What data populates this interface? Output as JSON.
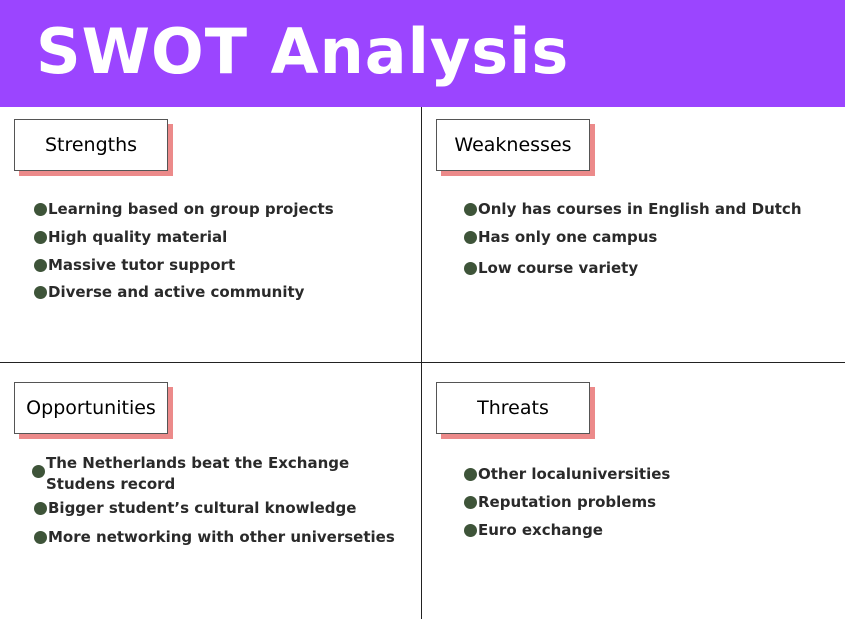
{
  "title": "SWOT Analysis",
  "colors": {
    "header_bg": "#9b45ff",
    "label_shadow": "#ec8a8a",
    "bullet": "#3e5439"
  },
  "strengths": {
    "label": "Strengths",
    "items": [
      "Learning based on group projects",
      "High quality material",
      "Massive tutor support",
      "Diverse and active community"
    ]
  },
  "weaknesses": {
    "label": "Weaknesses",
    "items": [
      "Only has courses in English and Dutch",
      "Has only one campus",
      "Low course variety"
    ]
  },
  "opportunities": {
    "label": "Opportunities",
    "items": [
      "The Netherlands beat the Exchange Studens record",
      "Bigger student’s cultural knowledge",
      "More networking with other universeties"
    ]
  },
  "threats": {
    "label": "Threats",
    "items": [
      "Other localuniversities",
      "Reputation problems",
      "Euro exchange"
    ]
  }
}
